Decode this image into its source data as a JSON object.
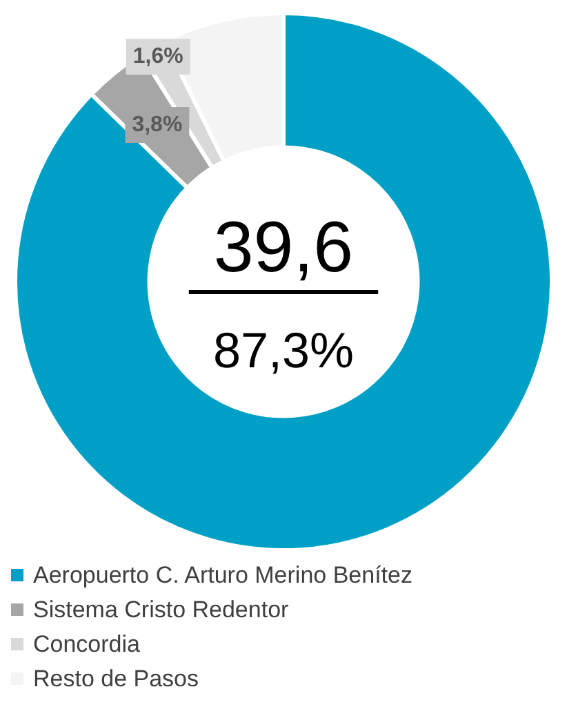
{
  "chart_data": {
    "type": "donut",
    "categories": [
      "Aeropuerto C. Arturo Merino Benítez",
      "Sistema Cristo Redentor",
      "Concordia",
      "Resto de Pasos"
    ],
    "values": [
      87.3,
      3.8,
      1.6,
      7.3
    ],
    "colors": [
      "#00a0c6",
      "#a6a6a6",
      "#d9d9d9",
      "#f4f4f4"
    ],
    "value_labels": [
      "87,3%",
      "3,8%",
      "1,6%",
      null
    ],
    "annotations": [
      "39,6"
    ],
    "legend": "bottom"
  }
}
